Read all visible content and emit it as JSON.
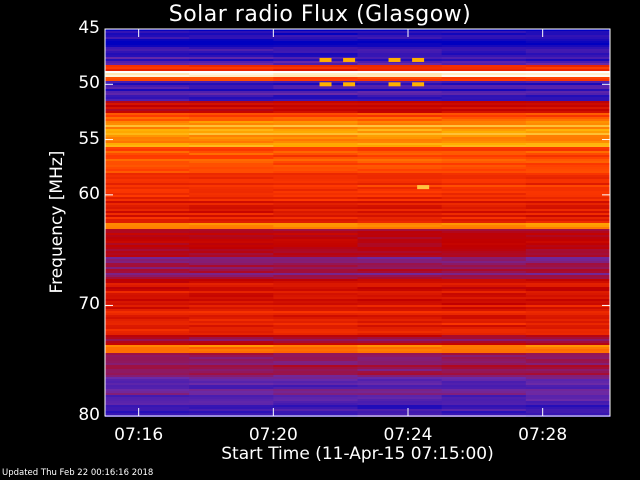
{
  "chart_data": {
    "type": "heatmap",
    "title": "Solar radio Flux (Glasgow)",
    "xlabel": "Start Time (11-Apr-15 07:15:00)",
    "ylabel": "Frequency [MHz]",
    "ylim": [
      45,
      80
    ],
    "y_ticks": [
      "45",
      "50",
      "55",
      "60",
      "70",
      "80"
    ],
    "y_tick_values": [
      45,
      50,
      55,
      60,
      70,
      80
    ],
    "x_ticks": [
      "07:16",
      "07:20",
      "07:24",
      "07:28"
    ],
    "x_tick_minutes": [
      1,
      5,
      9,
      13
    ],
    "x_range_minutes": [
      0,
      15
    ],
    "colormap": [
      "#0000c0",
      "#6a2aa8",
      "#c00000",
      "#ff3a00",
      "#ffb000",
      "#ffffff"
    ],
    "bands": [
      {
        "freq": [
          45.0,
          46.6
        ],
        "level": 0.05
      },
      {
        "freq": [
          46.6,
          48.2
        ],
        "level": 0.12
      },
      {
        "freq": [
          48.2,
          48.7
        ],
        "level": 0.55
      },
      {
        "freq": [
          48.7,
          49.2
        ],
        "level": 0.98
      },
      {
        "freq": [
          49.2,
          49.6
        ],
        "level": 0.6
      },
      {
        "freq": [
          49.6,
          51.5
        ],
        "level": 0.12
      },
      {
        "freq": [
          51.5,
          52.5
        ],
        "level": 0.4
      },
      {
        "freq": [
          52.5,
          53.2
        ],
        "level": 0.62
      },
      {
        "freq": [
          53.2,
          55.5
        ],
        "level": 0.78
      },
      {
        "freq": [
          55.5,
          58.0
        ],
        "level": 0.62
      },
      {
        "freq": [
          58.0,
          60.5
        ],
        "level": 0.55
      },
      {
        "freq": [
          60.5,
          62.5
        ],
        "level": 0.5
      },
      {
        "freq": [
          62.5,
          63.0
        ],
        "level": 0.75
      },
      {
        "freq": [
          63.0,
          65.5
        ],
        "level": 0.38
      },
      {
        "freq": [
          65.5,
          67.5
        ],
        "level": 0.3
      },
      {
        "freq": [
          67.5,
          70.0
        ],
        "level": 0.48
      },
      {
        "freq": [
          70.0,
          72.5
        ],
        "level": 0.5
      },
      {
        "freq": [
          72.5,
          73.5
        ],
        "level": 0.35
      },
      {
        "freq": [
          73.5,
          74.3
        ],
        "level": 0.7
      },
      {
        "freq": [
          74.3,
          76.5
        ],
        "level": 0.28
      },
      {
        "freq": [
          76.5,
          78.5
        ],
        "level": 0.18
      },
      {
        "freq": [
          78.5,
          80.0
        ],
        "level": 0.12
      }
    ],
    "bursts": [
      {
        "minute": 9.45,
        "freq": 59.3,
        "level": 0.85
      },
      {
        "minute": 6.55,
        "freq": 47.8,
        "level": 0.8
      },
      {
        "minute": 7.25,
        "freq": 47.8,
        "level": 0.8
      },
      {
        "minute": 8.6,
        "freq": 47.8,
        "level": 0.8
      },
      {
        "minute": 9.3,
        "freq": 47.8,
        "level": 0.8
      },
      {
        "minute": 6.55,
        "freq": 50.0,
        "level": 0.8
      },
      {
        "minute": 7.25,
        "freq": 50.0,
        "level": 0.8
      },
      {
        "minute": 8.6,
        "freq": 50.0,
        "level": 0.8
      },
      {
        "minute": 9.3,
        "freq": 50.0,
        "level": 0.8
      }
    ]
  },
  "footer": "Updated Thu Feb 22 00:16:16 2018"
}
